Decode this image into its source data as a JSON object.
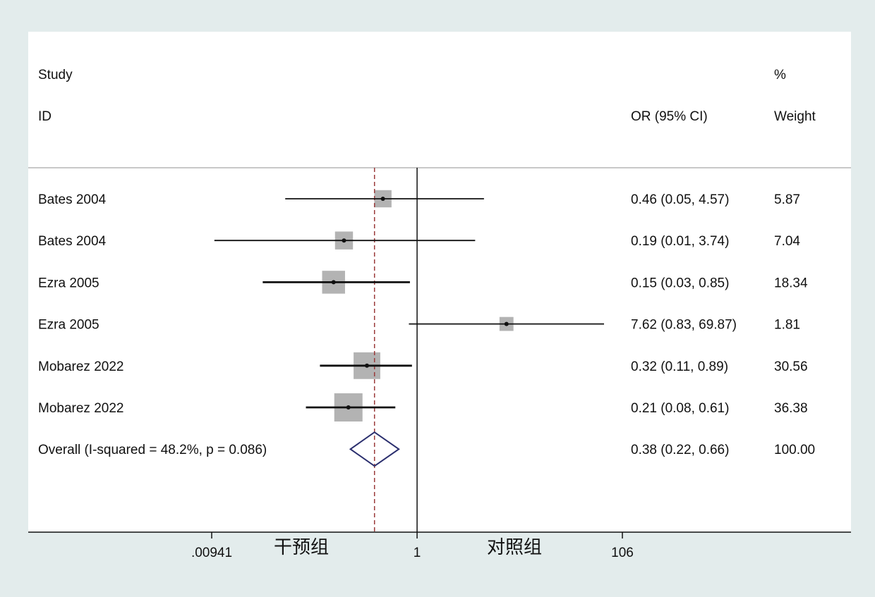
{
  "chart_data": {
    "type": "forest",
    "header": {
      "study_label_line1": "Study",
      "study_label_line2": "ID",
      "effect_label": "OR (95% CI)",
      "weight_label_line1": "%",
      "weight_label_line2": "Weight"
    },
    "scale": "log",
    "xlim": [
      0.00941,
      106
    ],
    "null_value": 1,
    "x_ticks": [
      {
        "value": 0.00941,
        "label": ".00941"
      },
      {
        "value": 1,
        "label": "1"
      },
      {
        "value": 106,
        "label": "106"
      }
    ],
    "favours_left": "干预组",
    "favours_right": "对照组",
    "studies": [
      {
        "label": "Bates 2004",
        "or": 0.46,
        "lo": 0.05,
        "hi": 4.57,
        "ci_text": "0.46 (0.05, 4.57)",
        "weight": 5.87,
        "weight_text": "5.87"
      },
      {
        "label": "Bates 2004",
        "or": 0.19,
        "lo": 0.01,
        "hi": 3.74,
        "ci_text": "0.19 (0.01, 3.74)",
        "weight": 7.04,
        "weight_text": "7.04"
      },
      {
        "label": "Ezra 2005",
        "or": 0.15,
        "lo": 0.03,
        "hi": 0.85,
        "ci_text": "0.15 (0.03, 0.85)",
        "weight": 18.34,
        "weight_text": "18.34"
      },
      {
        "label": "Ezra 2005",
        "or": 7.62,
        "lo": 0.83,
        "hi": 69.87,
        "ci_text": "7.62 (0.83, 69.87)",
        "weight": 1.81,
        "weight_text": "1.81"
      },
      {
        "label": "Mobarez 2022",
        "or": 0.32,
        "lo": 0.11,
        "hi": 0.89,
        "ci_text": "0.32 (0.11, 0.89)",
        "weight": 30.56,
        "weight_text": "30.56"
      },
      {
        "label": "Mobarez 2022",
        "or": 0.21,
        "lo": 0.08,
        "hi": 0.61,
        "ci_text": "0.21 (0.08, 0.61)",
        "weight": 36.38,
        "weight_text": "36.38"
      }
    ],
    "overall": {
      "label": "Overall  (I-squared = 48.2%, p = 0.086)",
      "or": 0.38,
      "lo": 0.22,
      "hi": 0.66,
      "ci_text": "0.38 (0.22, 0.66)",
      "weight_text": "100.00"
    },
    "colors": {
      "background": "#e3ecec",
      "plot": "#ffffff",
      "box": "#b3b3b3",
      "diamond": "#2b2f6e",
      "pooled_line": "#9a3a3a"
    }
  }
}
